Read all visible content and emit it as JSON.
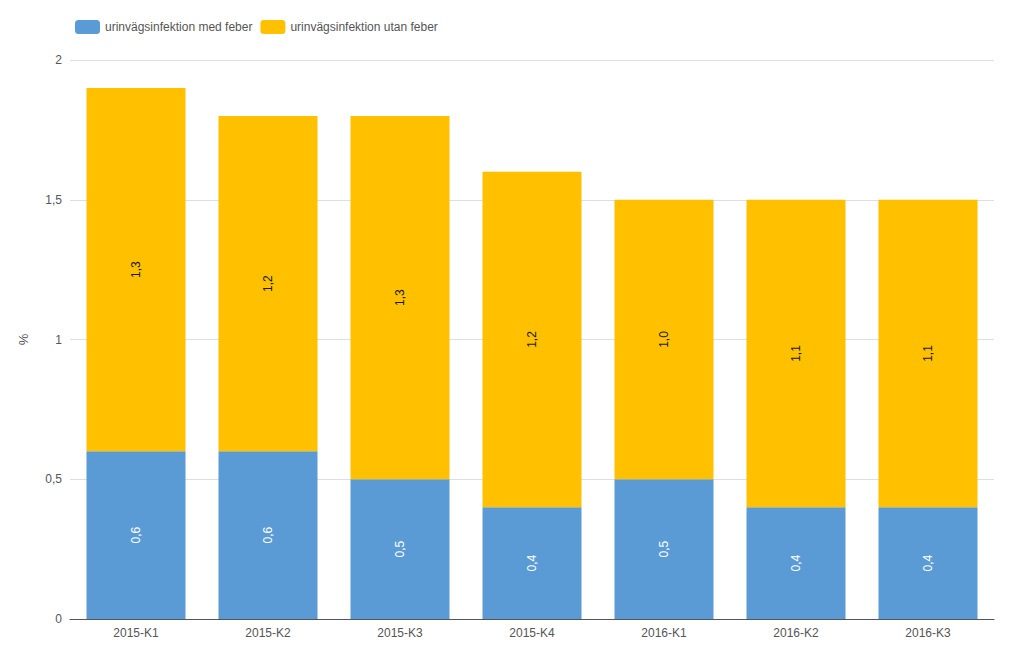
{
  "chart_data": {
    "type": "bar",
    "stacked": true,
    "ylabel": "%",
    "categories": [
      "2015-K1",
      "2015-K2",
      "2015-K3",
      "2015-K4",
      "2016-K1",
      "2016-K2",
      "2016-K3"
    ],
    "series": [
      {
        "name": "urinvägsinfektion med feber",
        "color": "#5B9BD5",
        "values": [
          0.6,
          0.6,
          0.5,
          0.4,
          0.5,
          0.4,
          0.4
        ],
        "value_labels": [
          "0,6",
          "0,6",
          "0,5",
          "0,4",
          "0,5",
          "0,4",
          "0,4"
        ]
      },
      {
        "name": "urinvägsinfektion utan feber",
        "color": "#FFC000",
        "values": [
          1.3,
          1.2,
          1.3,
          1.2,
          1.0,
          1.1,
          1.1
        ],
        "value_labels": [
          "1,3",
          "1,2",
          "1,3",
          "1,2",
          "1,0",
          "1,1",
          "1,1"
        ]
      }
    ],
    "ylim": [
      0,
      2.0
    ],
    "yticks": [
      0,
      {
        "value": 0.5,
        "label": "0,5"
      },
      1,
      {
        "value": 1.5,
        "label": "1,5"
      },
      2
    ],
    "grid": true,
    "legend": "upper left",
    "data_labels": true
  }
}
